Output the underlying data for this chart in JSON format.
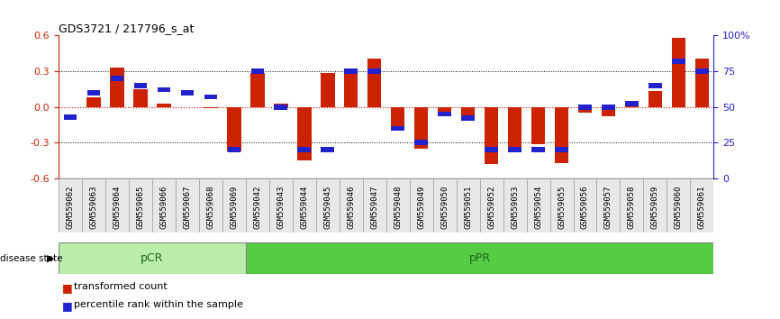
{
  "title": "GDS3721 / 217796_s_at",
  "samples": [
    "GSM559062",
    "GSM559063",
    "GSM559064",
    "GSM559065",
    "GSM559066",
    "GSM559067",
    "GSM559068",
    "GSM559069",
    "GSM559042",
    "GSM559043",
    "GSM559044",
    "GSM559045",
    "GSM559046",
    "GSM559047",
    "GSM559048",
    "GSM559049",
    "GSM559050",
    "GSM559051",
    "GSM559052",
    "GSM559053",
    "GSM559054",
    "GSM559055",
    "GSM559056",
    "GSM559057",
    "GSM559058",
    "GSM559059",
    "GSM559060",
    "GSM559061"
  ],
  "red_bars": [
    0.0,
    0.08,
    0.33,
    0.15,
    0.03,
    0.0,
    -0.01,
    -0.37,
    0.28,
    0.03,
    -0.45,
    0.28,
    0.3,
    0.4,
    -0.18,
    -0.35,
    -0.06,
    -0.07,
    -0.48,
    -0.37,
    -0.31,
    -0.47,
    -0.05,
    -0.08,
    0.05,
    0.13,
    0.58,
    0.4
  ],
  "blue_pct": [
    43,
    60,
    70,
    65,
    62,
    60,
    57,
    20,
    75,
    50,
    20,
    20,
    75,
    75,
    35,
    25,
    45,
    42,
    20,
    20,
    20,
    20,
    50,
    50,
    52,
    65,
    82,
    75
  ],
  "pCR_count": 8,
  "pPR_count": 20,
  "ylim": [
    -0.6,
    0.6
  ],
  "yticks_left": [
    -0.6,
    -0.3,
    0.0,
    0.3,
    0.6
  ],
  "yticks_right": [
    0,
    25,
    50,
    75,
    100
  ],
  "bar_color": "#cc2200",
  "square_color": "#2222cc",
  "pCR_color": "#bbeeaa",
  "pPR_color": "#55cc44",
  "group_label_color": "#226622",
  "axis_left_color": "#cc2200",
  "axis_right_color": "#2222cc",
  "disease_state_label": "disease state",
  "legend_bar_label": "transformed count",
  "legend_sq_label": "percentile rank within the sample",
  "hline_color": "black",
  "zero_line_color": "#dd0000"
}
